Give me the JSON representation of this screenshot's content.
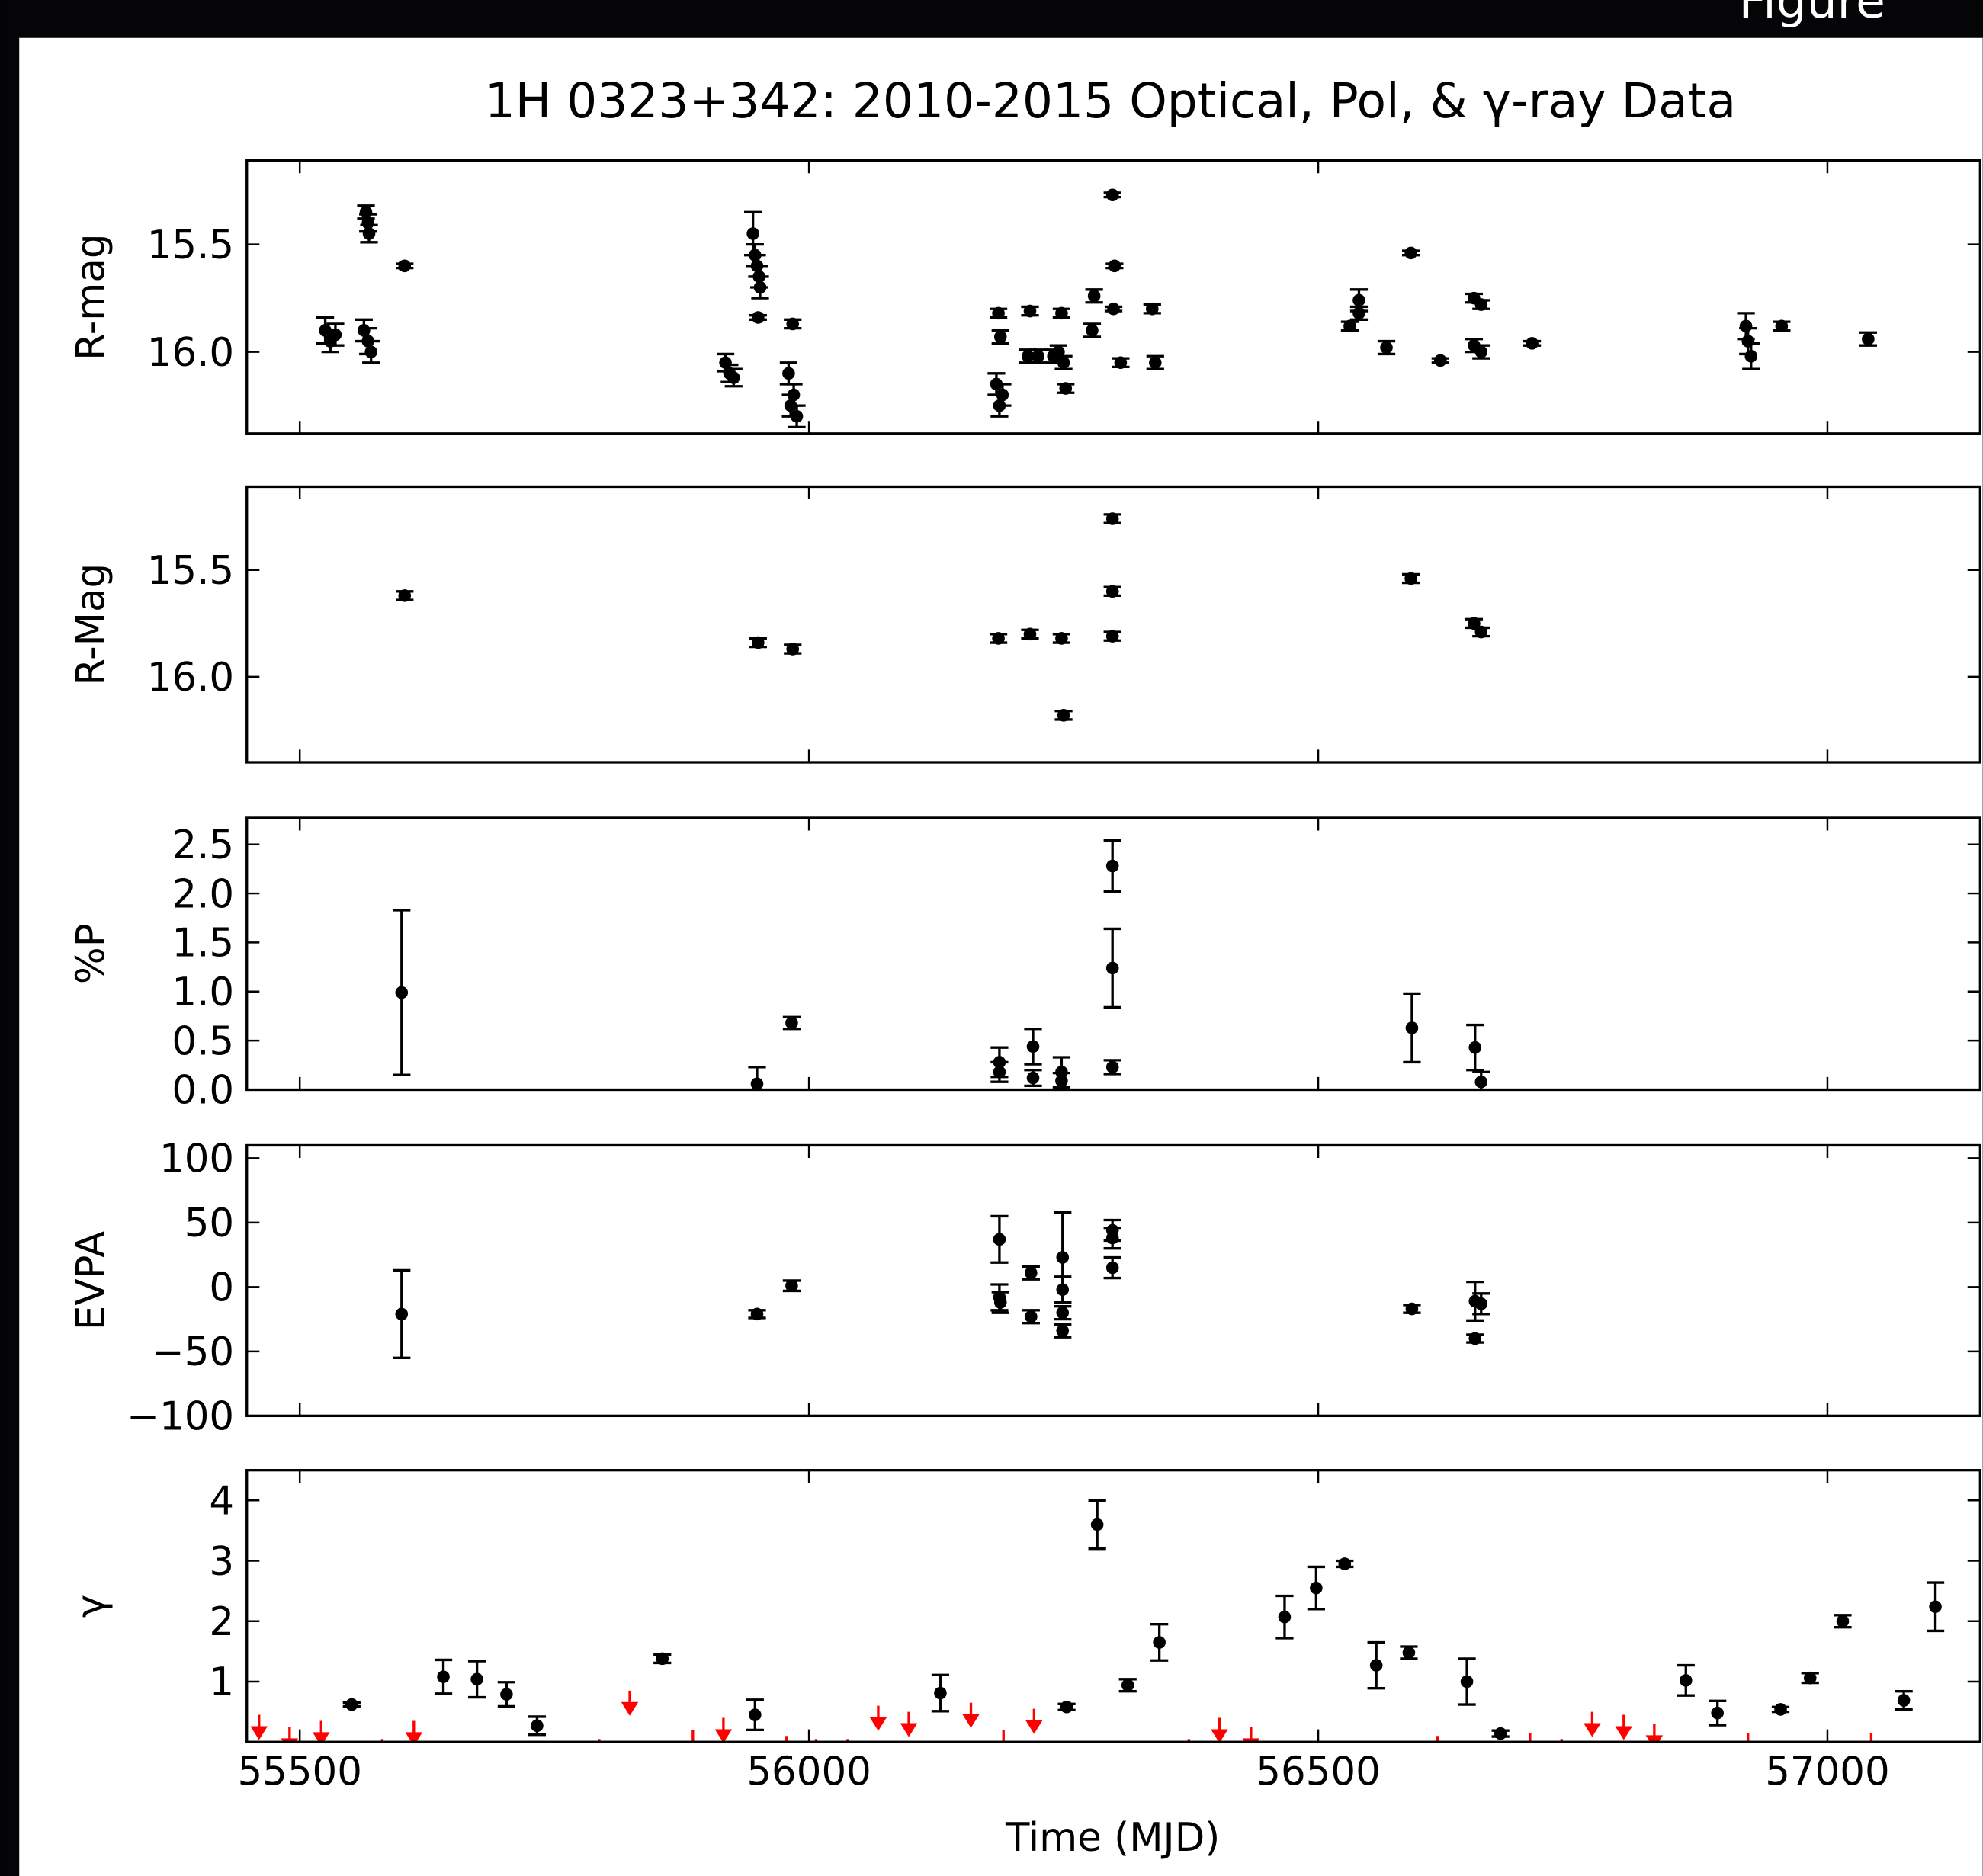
{
  "figure_label": "Figure",
  "chart_data": [
    {
      "type": "errorbar",
      "title": "1H 0323+342: 2010-2015 Optical, Pol, & γ-ray Data",
      "ylabel": "R-mag",
      "xlim": [
        55448,
        57150
      ],
      "ylim": [
        16.38,
        15.11
      ],
      "yticks": [
        15.5,
        {
          "value": 16,
          "label": "16.0"
        }
      ],
      "series": [
        {
          "color": "#000000",
          "x": [
            55525,
            55530,
            55535,
            55563,
            55565,
            55567,
            55568,
            55567,
            55570,
            55603,
            55918,
            55922,
            55926,
            55945,
            55947,
            55949,
            55951,
            55952,
            55950,
            55984,
            55980,
            55982,
            55985,
            55988,
            56186,
            56188,
            56184,
            56190,
            56187,
            56217,
            56215,
            56225,
            56248,
            56245,
            56250,
            56252,
            56240,
            56280,
            56278,
            56298,
            56300,
            56299,
            56306,
            56337,
            56340,
            56531,
            56540,
            56540,
            56567,
            56591,
            56620,
            56653,
            56653,
            56660,
            56660,
            56710,
            56920,
            56922,
            56925,
            56955,
            57040
          ],
          "values": [
            15.9,
            15.95,
            15.92,
            15.9,
            15.35,
            15.4,
            15.45,
            15.95,
            16.0,
            15.6,
            16.05,
            16.1,
            16.12,
            15.45,
            15.55,
            15.6,
            15.65,
            15.7,
            15.84,
            15.87,
            16.1,
            16.25,
            16.2,
            16.3,
            15.82,
            15.93,
            16.15,
            16.2,
            16.25,
            15.81,
            16.02,
            16.02,
            15.82,
            16.0,
            16.05,
            16.17,
            16.02,
            15.74,
            15.9,
            15.27,
            15.6,
            15.8,
            16.05,
            15.8,
            16.05,
            15.88,
            15.76,
            15.82,
            15.98,
            15.54,
            16.04,
            15.75,
            15.97,
            15.78,
            16.0,
            15.96,
            15.88,
            15.95,
            16.02,
            15.88,
            15.94
          ],
          "errors": [
            0.06,
            0.05,
            0.05,
            0.05,
            0.03,
            0.04,
            0.04,
            0.06,
            0.05,
            0.01,
            0.04,
            0.04,
            0.04,
            0.1,
            0.05,
            0.05,
            0.05,
            0.05,
            0.01,
            0.02,
            0.05,
            0.05,
            0.05,
            0.05,
            0.02,
            0.03,
            0.05,
            0.05,
            0.05,
            0.02,
            0.03,
            0.03,
            0.02,
            0.03,
            0.03,
            0.02,
            0.03,
            0.03,
            0.03,
            0.01,
            0.01,
            0.01,
            0.02,
            0.02,
            0.03,
            0.02,
            0.05,
            0.03,
            0.03,
            0.01,
            0.01,
            0.02,
            0.03,
            0.02,
            0.03,
            0.01,
            0.06,
            0.06,
            0.06,
            0.02,
            0.03
          ]
        }
      ]
    },
    {
      "type": "errorbar",
      "ylabel": "R-Mag",
      "xlim": [
        55448,
        57150
      ],
      "ylim": [
        16.4,
        15.11
      ],
      "yticks": [
        15.5,
        {
          "value": 16,
          "label": "16.0"
        }
      ],
      "series": [
        {
          "color": "#000000",
          "x": [
            55603,
            55950,
            55984,
            56186,
            56217,
            56248,
            56250,
            56298,
            56298,
            56298,
            56591,
            56653,
            56660
          ],
          "values": [
            15.62,
            15.84,
            15.87,
            15.82,
            15.8,
            15.82,
            16.18,
            15.26,
            15.6,
            15.81,
            15.54,
            15.75,
            15.79
          ],
          "errors": [
            0.02,
            0.02,
            0.02,
            0.02,
            0.02,
            0.02,
            0.02,
            0.02,
            0.02,
            0.02,
            0.02,
            0.02,
            0.02
          ]
        }
      ]
    },
    {
      "type": "errorbar",
      "ylabel": "%P",
      "xlim": [
        55448,
        57150
      ],
      "ylim": [
        0,
        2.77
      ],
      "yticks": [
        {
          "value": 0,
          "label": "0.0"
        },
        0.5,
        {
          "value": 1,
          "label": "1.0"
        },
        1.5,
        {
          "value": 2,
          "label": "2.0"
        },
        2.5
      ],
      "series": [
        {
          "color": "#000000",
          "x": [
            55600,
            55949,
            55983,
            56187,
            56187,
            56220,
            56220,
            56248,
            56248,
            56298,
            56298,
            56298,
            56592,
            56654,
            56660
          ],
          "values": [
            0.99,
            0.06,
            0.68,
            0.28,
            0.18,
            0.44,
            0.12,
            0.18,
            0.09,
            2.28,
            1.24,
            0.23,
            0.63,
            0.43,
            0.08
          ],
          "errors": [
            0.84,
            0.17,
            0.06,
            0.15,
            0.1,
            0.18,
            0.08,
            0.15,
            0.08,
            0.26,
            0.4,
            0.07,
            0.35,
            0.23,
            0.1
          ]
        }
      ]
    },
    {
      "type": "errorbar",
      "ylabel": "EVPA",
      "xlim": [
        55448,
        57150
      ],
      "ylim": [
        -100,
        110
      ],
      "yticks": [
        {
          "value": -100,
          "label": "−100"
        },
        {
          "value": -50,
          "label": "−50"
        },
        0,
        50,
        100
      ],
      "series": [
        {
          "color": "#000000",
          "x": [
            55600,
            55949,
            55983,
            56187,
            56187,
            56188,
            56218,
            56218,
            56249,
            56249,
            56249,
            56249,
            56298,
            56298,
            56298,
            56592,
            56654,
            56660,
            56654
          ],
          "values": [
            -21,
            -21,
            1,
            37,
            -8,
            -12,
            11,
            -23,
            23,
            -2,
            -20,
            -34,
            44,
            38,
            15,
            -17,
            -11,
            -13,
            -40
          ],
          "errors": [
            34,
            3,
            4,
            18,
            10,
            8,
            5,
            5,
            35,
            10,
            5,
            5,
            8,
            8,
            8,
            3,
            15,
            8,
            3
          ]
        }
      ]
    },
    {
      "type": "errorbar",
      "ylabel": "γ",
      "xlabel": "Time (MJD)",
      "xlim": [
        55448,
        57150
      ],
      "ylim": [
        0,
        4.5
      ],
      "yticks": [
        1,
        2,
        3,
        4
      ],
      "xticks": [
        55500,
        56000,
        56500,
        57000
      ],
      "series": [
        {
          "color": "#000000",
          "x": [
            55551,
            55641,
            55674,
            55703,
            55733,
            55856,
            55947,
            56129,
            56253,
            56283,
            56313,
            56344,
            56467,
            56498,
            56526,
            56557,
            56589,
            56646,
            56679,
            56861,
            56892,
            56954,
            56983,
            57015,
            57075,
            57106
          ],
          "values": [
            0.62,
            1.08,
            1.04,
            0.79,
            0.27,
            1.38,
            0.45,
            0.81,
            0.58,
            3.6,
            0.94,
            1.65,
            2.07,
            2.55,
            2.95,
            1.27,
            1.48,
            1.0,
            0.14,
            1.02,
            0.48,
            0.54,
            1.06,
            2.0,
            0.69,
            2.24
          ],
          "errors": [
            0.03,
            0.28,
            0.3,
            0.2,
            0.15,
            0.07,
            0.25,
            0.3,
            0.05,
            0.4,
            0.1,
            0.3,
            0.35,
            0.35,
            0.05,
            0.38,
            0.1,
            0.38,
            0.05,
            0.25,
            0.2,
            0.04,
            0.08,
            0.1,
            0.15,
            0.4
          ]
        },
        {
          "color": "#ff0000",
          "marker": "upper-limit",
          "x": [
            55460,
            55490,
            55521,
            55581,
            55612,
            55794,
            55824,
            55886,
            55916,
            55978,
            56007,
            56038,
            56068,
            56098,
            56159,
            56191,
            56221,
            56373,
            56403,
            56434,
            56617,
            56708,
            56739,
            56769,
            56800,
            56830,
            56922,
            57043
          ],
          "values": [
            0.45,
            0.25,
            0.35,
            0.05,
            0.35,
            0.05,
            0.85,
            0.2,
            0.4,
            0.1,
            0.05,
            0.05,
            0.6,
            0.5,
            0.65,
            0.2,
            0.55,
            0.05,
            0.4,
            0.25,
            0.1,
            0.15,
            0.05,
            0.5,
            0.45,
            0.3,
            0.15,
            0.15
          ]
        }
      ]
    }
  ]
}
